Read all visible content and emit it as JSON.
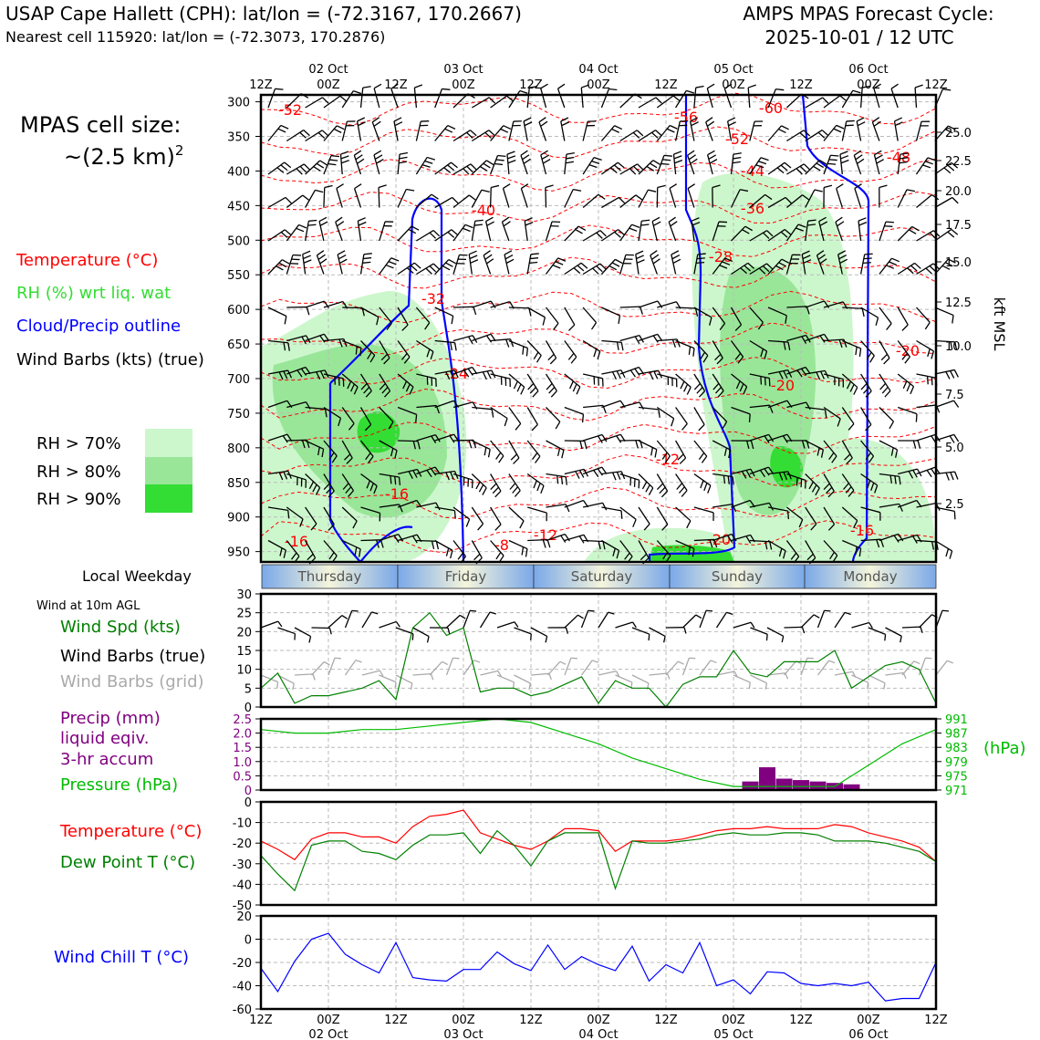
{
  "header": {
    "title_left": "USAP Cape Hallett (CPH): lat/lon = (-72.3167, 170.2667)",
    "subtitle_left": "Nearest cell 115920: lat/lon = (-72.3073, 170.2876)",
    "title_right_1": "AMPS MPAS Forecast Cycle:",
    "title_right_2": "2025-10-01 / 12 UTC"
  },
  "left_panel": {
    "cell_size_label": "MPAS cell size:",
    "cell_size_value": "~(2.5 km)",
    "cell_size_exp": "2",
    "legend_temperature": "Temperature (°C)",
    "legend_rh": "RH (%) wrt liq. wat",
    "legend_cloud": "Cloud/Precip outline",
    "legend_wind": "Wind Barbs (kts) (true)",
    "rh_levels": [
      "RH > 70%",
      "RH > 80%",
      "RH > 90%"
    ],
    "rh_colors": [
      "#ccf7cc",
      "#99e699",
      "#33dd33"
    ]
  },
  "colors": {
    "temperature": "#ff0000",
    "rh_label": "#33dd33",
    "cloud": "#0000ff",
    "wind_speed": "#008000",
    "grid_barb": "#aaaaaa",
    "precip": "#800080",
    "pressure": "#00bb00",
    "dewpoint": "#008000",
    "windchill": "#0000ff"
  },
  "time_axis": {
    "hour_ticks": [
      "12Z",
      "00Z",
      "12Z",
      "00Z",
      "12Z",
      "00Z",
      "12Z",
      "00Z",
      "12Z",
      "00Z",
      "12Z"
    ],
    "date_labels": [
      "02 Oct",
      "03 Oct",
      "04 Oct",
      "05 Oct",
      "06 Oct"
    ]
  },
  "weekday": {
    "label": "Local Weekday",
    "days": [
      "Thursday",
      "Friday",
      "Saturday",
      "Sunday",
      "Monday"
    ]
  },
  "profile": {
    "pressure_ticks": [
      300,
      350,
      400,
      450,
      500,
      550,
      600,
      650,
      700,
      750,
      800,
      850,
      900,
      950
    ],
    "kft_ticks": [
      "25.0",
      "22.5",
      "20.0",
      "17.5",
      "15.0",
      "12.5",
      "10.0",
      "7.5",
      "5.0",
      "2.5"
    ],
    "kft_axis_label": "kft MSL",
    "temp_labels": [
      "-52",
      "-56",
      "-60",
      "-52",
      "-48",
      "-44",
      "-40",
      "-36",
      "-32",
      "-28",
      "-24",
      "-20",
      "-20",
      "-16",
      "-16",
      "-16",
      "-12",
      "-12",
      "-8",
      "-20"
    ]
  },
  "wind_panel": {
    "caption": "Wind at 10m AGL",
    "label_speed": "Wind Spd (kts)",
    "label_barbs": "Wind Barbs (true)",
    "label_grid": "Wind Barbs (grid)",
    "y_ticks": [
      "30",
      "25",
      "20",
      "15",
      "10",
      "5",
      "0"
    ]
  },
  "precip_panel": {
    "label_precip_1": "Precip (mm)",
    "label_precip_2": "liquid eqiv.",
    "label_precip_3": "3-hr accum",
    "label_pressure": "Pressure (hPa)",
    "y_left_ticks": [
      "2.5",
      "2.0",
      "1.5",
      "1.0",
      "0.5",
      "0"
    ],
    "y_right_ticks": [
      "991",
      "987",
      "983",
      "979",
      "975",
      "971"
    ],
    "y_right_unit": "(hPa)"
  },
  "temp_panel": {
    "label_temp": "Temperature (°C)",
    "label_dew": "Dew Point T (°C)",
    "y_ticks": [
      "0",
      "-10",
      "-20",
      "-30",
      "-40",
      "-50"
    ]
  },
  "chill_panel": {
    "label": "Wind Chill T (°C)",
    "y_ticks": [
      "20",
      "0",
      "-20",
      "-40",
      "-60"
    ]
  },
  "chart_data": [
    {
      "type": "line",
      "name": "wind_speed_10m",
      "x_hours_from_start": [
        0,
        3,
        6,
        9,
        12,
        15,
        18,
        21,
        24,
        27,
        30,
        33,
        36,
        39,
        42,
        45,
        48,
        51,
        54,
        57,
        60,
        63,
        66,
        69,
        72,
        75,
        78,
        81,
        84,
        87,
        90,
        93,
        96,
        99,
        102,
        105,
        108,
        111,
        114,
        117,
        120
      ],
      "series": [
        {
          "name": "Wind Spd (kts)",
          "values": [
            5,
            9,
            1,
            3,
            3,
            4,
            5,
            7,
            2,
            21,
            25,
            19,
            21,
            4,
            5,
            5,
            3,
            4,
            6,
            8,
            1,
            7,
            5,
            5,
            0,
            6,
            8,
            8,
            15,
            9,
            8,
            12,
            12,
            12,
            15,
            5,
            8,
            11,
            12,
            10,
            1
          ]
        }
      ],
      "ylim": [
        0,
        30
      ]
    },
    {
      "type": "line",
      "name": "pressure",
      "x_hours_from_start": [
        0,
        6,
        12,
        18,
        24,
        30,
        36,
        42,
        48,
        54,
        60,
        66,
        72,
        78,
        84,
        90,
        96,
        102,
        108,
        114,
        120
      ],
      "series": [
        {
          "name": "Pressure (hPa)",
          "values": [
            988,
            987,
            987,
            988,
            988,
            989,
            990,
            991,
            990,
            987,
            984,
            980,
            977,
            974,
            972,
            972,
            972,
            972,
            978,
            984,
            988
          ]
        }
      ],
      "ylim": [
        971,
        991
      ]
    },
    {
      "type": "bar",
      "name": "precip_3hr",
      "x_hours_from_start": [
        87,
        90,
        93,
        96,
        99,
        102,
        105
      ],
      "values": [
        0.3,
        0.8,
        0.4,
        0.35,
        0.3,
        0.25,
        0.2
      ],
      "ylim": [
        0,
        2.5
      ]
    },
    {
      "type": "line",
      "name": "temperature_dewpoint",
      "x_hours_from_start": [
        0,
        3,
        6,
        9,
        12,
        15,
        18,
        21,
        24,
        27,
        30,
        33,
        36,
        39,
        42,
        45,
        48,
        51,
        54,
        57,
        60,
        63,
        66,
        69,
        72,
        75,
        78,
        81,
        84,
        87,
        90,
        93,
        96,
        99,
        102,
        105,
        108,
        111,
        114,
        117,
        120
      ],
      "series": [
        {
          "name": "Temperature (°C)",
          "values": [
            -19,
            -23,
            -28,
            -18,
            -15,
            -15,
            -17,
            -17,
            -20,
            -12,
            -7,
            -6,
            -4,
            -15,
            -18,
            -21,
            -23,
            -19,
            -13,
            -13,
            -14,
            -24,
            -19,
            -19,
            -19,
            -18,
            -16,
            -14,
            -13,
            -13,
            -12,
            -13,
            -13,
            -13,
            -11,
            -12,
            -15,
            -17,
            -19,
            -22,
            -29
          ]
        },
        {
          "name": "Dew Point T (°C)",
          "values": [
            -26,
            -35,
            -43,
            -21,
            -19,
            -19,
            -24,
            -25,
            -28,
            -21,
            -16,
            -16,
            -15,
            -25,
            -14,
            -21,
            -31,
            -19,
            -15,
            -15,
            -15,
            -42,
            -19,
            -20,
            -20,
            -19,
            -18,
            -16,
            -15,
            -16,
            -16,
            -15,
            -15,
            -16,
            -19,
            -19,
            -19,
            -20,
            -22,
            -24,
            -29
          ]
        }
      ],
      "ylim": [
        -50,
        0
      ]
    },
    {
      "type": "line",
      "name": "wind_chill",
      "x_hours_from_start": [
        0,
        3,
        6,
        9,
        12,
        15,
        18,
        21,
        24,
        27,
        30,
        33,
        36,
        39,
        42,
        45,
        48,
        51,
        54,
        57,
        60,
        63,
        66,
        69,
        72,
        75,
        78,
        81,
        84,
        87,
        90,
        93,
        96,
        99,
        102,
        105,
        108,
        111,
        114,
        117,
        120
      ],
      "series": [
        {
          "name": "Wind Chill T (°C)",
          "values": [
            -25,
            -45,
            -19,
            0,
            5,
            -13,
            -22,
            -29,
            -3,
            -33,
            -35,
            -36,
            -26,
            -26,
            -11,
            -21,
            -27,
            -5,
            -26,
            -15,
            -22,
            -27,
            -6,
            -36,
            -22,
            -29,
            -3,
            -40,
            -35,
            -47,
            -28,
            -29,
            -38,
            -40,
            -38,
            -40,
            -37,
            -53,
            -51,
            -51,
            -20
          ]
        }
      ],
      "ylim": [
        -60,
        20
      ]
    }
  ]
}
